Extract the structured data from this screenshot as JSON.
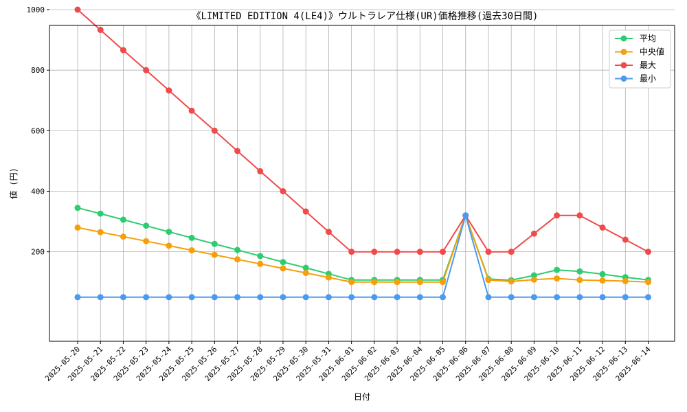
{
  "chart_data": {
    "type": "line",
    "title": "《LIMITED EDITION 4(LE4)》ウルトラレア仕様(UR)価格推移(過去30日間)",
    "xlabel": "日付",
    "ylabel": "値 (円)",
    "ylim": [
      0,
      1050
    ],
    "yticks": [
      200,
      400,
      600,
      800,
      1000
    ],
    "grid": true,
    "legend_position": "top-right",
    "categories": [
      "2025-05-20",
      "2025-05-21",
      "2025-05-22",
      "2025-05-23",
      "2025-05-24",
      "2025-05-25",
      "2025-05-26",
      "2025-05-27",
      "2025-05-28",
      "2025-05-29",
      "2025-05-30",
      "2025-05-31",
      "2025-06-01",
      "2025-06-02",
      "2025-06-03",
      "2025-06-04",
      "2025-06-05",
      "2025-06-06",
      "2025-06-07",
      "2025-06-08",
      "2025-06-09",
      "2025-06-10",
      "2025-06-11",
      "2025-06-12",
      "2025-06-13",
      "2025-06-14"
    ],
    "series": [
      {
        "name": "平均",
        "color": "#2ecc71",
        "values": [
          345,
          326,
          306,
          286,
          266,
          246,
          226,
          206,
          186,
          166,
          147,
          127,
          107,
          107,
          107,
          107,
          107,
          320,
          110,
          106,
          122,
          140,
          135,
          126,
          116,
          107
        ]
      },
      {
        "name": "中央値",
        "color": "#f5a00a",
        "values": [
          280,
          265,
          250,
          235,
          220,
          205,
          190,
          175,
          160,
          145,
          130,
          115,
          100,
          100,
          100,
          100,
          100,
          320,
          107,
          102,
          108,
          112,
          107,
          105,
          103,
          100
        ]
      },
      {
        "name": "最大",
        "color": "#f04a4a",
        "values": [
          1000,
          933,
          866,
          800,
          733,
          666,
          600,
          533,
          466,
          400,
          333,
          266,
          200,
          200,
          200,
          200,
          200,
          320,
          200,
          200,
          260,
          320,
          320,
          280,
          240,
          200
        ]
      },
      {
        "name": "最小",
        "color": "#4a9af0",
        "values": [
          50,
          50,
          50,
          50,
          50,
          50,
          50,
          50,
          50,
          50,
          50,
          50,
          50,
          50,
          50,
          50,
          50,
          320,
          50,
          50,
          50,
          50,
          50,
          50,
          50,
          50
        ]
      }
    ]
  }
}
